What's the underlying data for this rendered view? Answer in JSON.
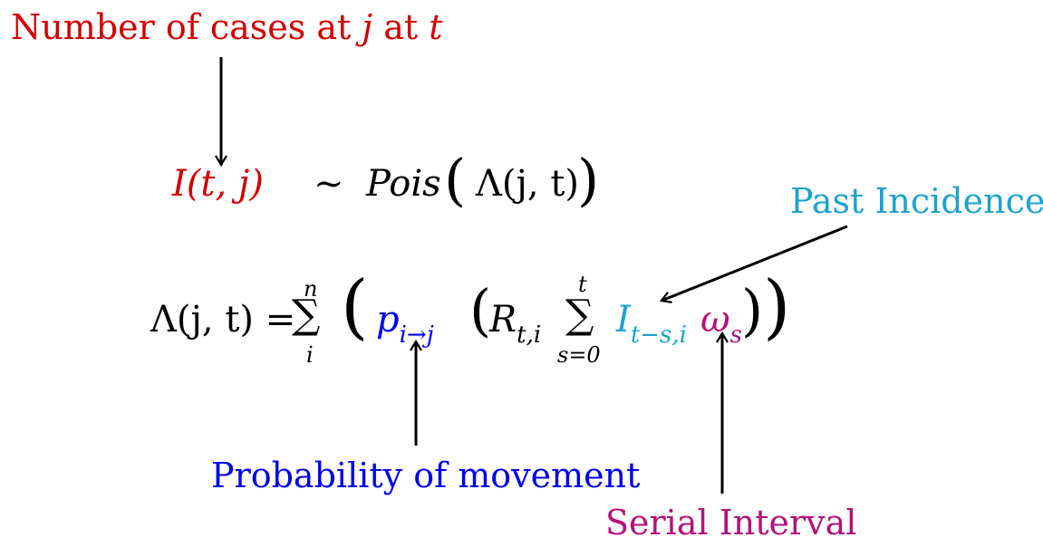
{
  "colors": {
    "red": "#d40000",
    "cyan": "#1aa3d1",
    "blue": "#0000ee",
    "magenta": "#b3127a",
    "black": "#000000"
  },
  "labels": {
    "cases_prefix": "Number of cases at ",
    "cases_j": "j",
    "cases_mid": " at ",
    "cases_t": "t",
    "past_incidence": "Past Incidence",
    "movement": "Probability of movement",
    "serial_interval": "Serial Interval"
  },
  "eq1": {
    "lhs": "I(t, j)",
    "sim": "∼",
    "pois": "Pois",
    "arg": "Λ(j, t)"
  },
  "eq2": {
    "lhs": "Λ(j, t) =",
    "sum1_top": "n",
    "sum1_bottom": "i",
    "p": "p",
    "p_sub": "i→j",
    "R": "R",
    "R_sub": "t,i",
    "sum2_top": "t",
    "sum2_bottom": "s=0",
    "I": "I",
    "I_sub": "t−s,i",
    "omega": "ω",
    "omega_sub": "s"
  }
}
